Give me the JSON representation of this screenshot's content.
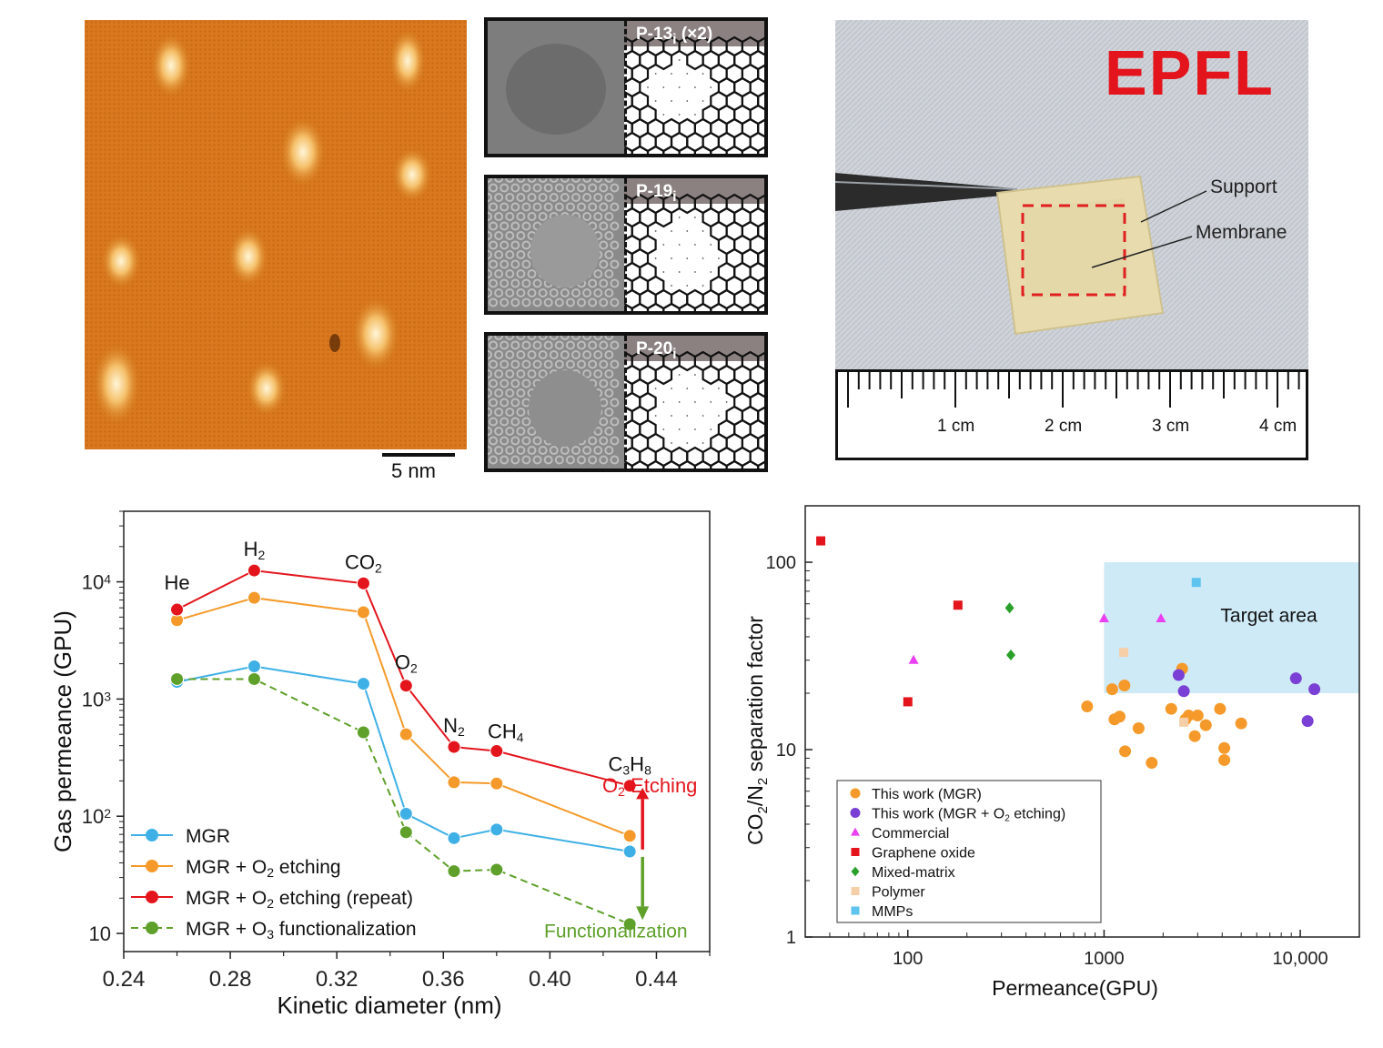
{
  "scale_bar": {
    "label": "5 nm"
  },
  "pores": [
    {
      "base": "P-13",
      "sub": "i",
      "suffix": " (×2)"
    },
    {
      "base": "P-19",
      "sub": "i",
      "suffix": ""
    },
    {
      "base": "P-20",
      "sub": "i",
      "suffix": ""
    }
  ],
  "photo": {
    "logo_text": "EPFL",
    "label_support": "Support",
    "label_membrane": "Membrane",
    "ruler_labels": [
      "1 cm",
      "2 cm",
      "3 cm",
      "4 cm"
    ],
    "colors": {
      "logo": "#e3141c",
      "dash": "#e02020"
    }
  },
  "chart_data": [
    {
      "type": "line",
      "xlabel": "Kinetic diameter (nm)",
      "ylabel": "Gas permeance (GPU)",
      "xlim": [
        0.24,
        0.46
      ],
      "ylim": [
        7,
        40000
      ],
      "yscale": "log",
      "xticks": [
        "0.24",
        "0.28",
        "0.32",
        "0.36",
        "0.40",
        "0.44"
      ],
      "yticks": [
        {
          "value": 10,
          "label": "10"
        },
        {
          "value": 100,
          "label": "10",
          "sup": "2"
        },
        {
          "value": 1000,
          "label": "10",
          "sup": "3"
        },
        {
          "value": 10000,
          "label": "10",
          "sup": "4"
        }
      ],
      "x": [
        0.26,
        0.289,
        0.33,
        0.346,
        0.364,
        0.38,
        0.43
      ],
      "gas_labels": [
        {
          "text": "He",
          "sub": ""
        },
        {
          "text": "H",
          "sub": "2"
        },
        {
          "text": "CO",
          "sub": "2"
        },
        {
          "text": "O",
          "sub": "2"
        },
        {
          "text": "N",
          "sub": "2"
        },
        {
          "text": "CH",
          "sub": "4"
        },
        {
          "text": "C",
          "sub": "3",
          "text2": "H",
          "sub2": "8"
        }
      ],
      "series": [
        {
          "legend": [
            {
              "t": "MGR"
            }
          ],
          "color": "#3fb0e6",
          "dashed": false,
          "values": [
            1400,
            1900,
            1350,
            105,
            65,
            77,
            50
          ]
        },
        {
          "legend": [
            {
              "t": "MGR + O"
            },
            {
              "t": "2",
              "sub": true
            },
            {
              "t": " etching"
            }
          ],
          "color": "#f59a2a",
          "dashed": false,
          "values": [
            4700,
            7300,
            5500,
            500,
            195,
            190,
            68
          ]
        },
        {
          "legend": [
            {
              "t": "MGR + O"
            },
            {
              "t": "2",
              "sub": true
            },
            {
              "t": " etching (repeat)"
            }
          ],
          "color": "#e3141c",
          "dashed": false,
          "values": [
            5800,
            12500,
            9700,
            1300,
            390,
            360,
            182
          ]
        },
        {
          "legend": [
            {
              "t": "MGR + O"
            },
            {
              "t": "3",
              "sub": true
            },
            {
              "t": " functionalization"
            }
          ],
          "color": "#5ea02a",
          "dashed": true,
          "values": [
            1480,
            1480,
            520,
            73,
            34,
            35,
            12
          ]
        }
      ],
      "annotations": {
        "etching_a": "O",
        "etching_sub": "2",
        "etching_b": " Etching",
        "functionalization": "Functionalization",
        "etching_color": "#e3141c",
        "functionalization_color": "#5ea02a"
      }
    },
    {
      "type": "scatter",
      "xlabel": "Permeance(GPU)",
      "ylabel_a": "CO",
      "ylabel_sub1": "2",
      "ylabel_b": "/N",
      "ylabel_sub2": "2",
      "ylabel_c": " separation factor",
      "xscale": "log",
      "yscale": "log",
      "xlim": [
        30,
        20000
      ],
      "ylim": [
        1,
        200
      ],
      "xticks": [
        {
          "value": 100,
          "label": "100"
        },
        {
          "value": 1000,
          "label": "1000"
        },
        {
          "value": 10000,
          "label": "10,000"
        }
      ],
      "yticks": [
        {
          "value": 1,
          "label": "1"
        },
        {
          "value": 10,
          "label": "10"
        },
        {
          "value": 100,
          "label": "100"
        }
      ],
      "target_area": {
        "label": "Target area",
        "x": [
          1000,
          20000
        ],
        "y": [
          20,
          100
        ],
        "color": "#cfeaf7"
      },
      "series": [
        {
          "legend": [
            {
              "t": "This work (MGR)"
            }
          ],
          "marker": "circle",
          "color": "#f59a2a",
          "points": [
            [
              820,
              17
            ],
            [
              1100,
              21
            ],
            [
              1130,
              14.5
            ],
            [
              1200,
              15
            ],
            [
              1270,
              22
            ],
            [
              1280,
              9.8
            ],
            [
              1500,
              13
            ],
            [
              1750,
              8.5
            ],
            [
              2200,
              16.5
            ],
            [
              2500,
              27
            ],
            [
              2600,
              14.5
            ],
            [
              2700,
              15.2
            ],
            [
              2900,
              11.8
            ],
            [
              3000,
              15.2
            ],
            [
              3300,
              13.5
            ],
            [
              3900,
              16.5
            ],
            [
              4100,
              10.2
            ],
            [
              4100,
              8.8
            ],
            [
              5000,
              13.8
            ]
          ]
        },
        {
          "legend": [
            {
              "t": "This work (MGR + O"
            },
            {
              "t": "2",
              "sub": true
            },
            {
              "t": " etching)"
            }
          ],
          "marker": "circle",
          "color": "#7a3fd4",
          "points": [
            [
              2400,
              25
            ],
            [
              2550,
              20.5
            ],
            [
              9500,
              24
            ],
            [
              10900,
              14.2
            ],
            [
              11800,
              21
            ]
          ]
        },
        {
          "legend": [
            {
              "t": "Commercial"
            }
          ],
          "marker": "triangle",
          "color": "#ea3ff2",
          "points": [
            [
              107,
              30
            ],
            [
              1000,
              50
            ],
            [
              1950,
              50
            ]
          ]
        },
        {
          "legend": [
            {
              "t": "Graphene oxide"
            }
          ],
          "marker": "square",
          "color": "#e3141c",
          "points": [
            [
              36,
              130
            ],
            [
              100,
              18
            ],
            [
              180,
              59
            ]
          ]
        },
        {
          "legend": [
            {
              "t": "Mixed-matrix"
            }
          ],
          "marker": "diamond",
          "color": "#2aa02a",
          "points": [
            [
              330,
              57
            ],
            [
              335,
              32
            ]
          ]
        },
        {
          "legend": [
            {
              "t": "Polymer"
            }
          ],
          "marker": "square",
          "color": "#f6cfa8",
          "points": [
            [
              1260,
              33
            ],
            [
              2550,
              14
            ]
          ]
        },
        {
          "legend": [
            {
              "t": "MMPs"
            }
          ],
          "marker": "square",
          "color": "#5fc3ef",
          "points": [
            [
              2950,
              78
            ]
          ]
        }
      ]
    }
  ]
}
